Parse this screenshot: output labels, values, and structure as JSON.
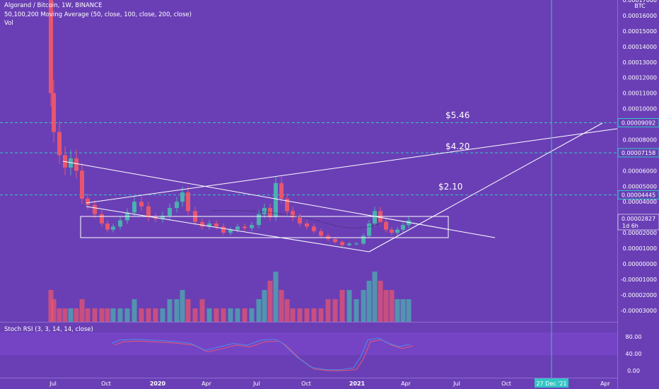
{
  "header": {
    "symbol_line": "Algorand / Bitcoin, 1W, BINANCE",
    "ma_line": "50,100,200 Moving Average (50, close, 100, close, 200, close)",
    "vol_line": "Vol"
  },
  "stoch": {
    "label": "Stoch RSI (3, 3, 14, 14, close)"
  },
  "chart_data": {
    "type": "candlestick",
    "symbol": "Algorand / Bitcoin",
    "interval": "1W",
    "exchange": "BINANCE",
    "currency_label": "BTC",
    "price_axis": {
      "ticks": [
        "0.00017000",
        "0.00016000",
        "0.00015000",
        "0.00014000",
        "0.00013000",
        "0.00012000",
        "0.00011000",
        "0.00010000",
        "0.00009000",
        "0.00008000",
        "0.00006000",
        "0.00005000",
        "0.00004000",
        "0.00003000",
        "0.00002000",
        "0.00001000",
        "0.00000000",
        "-0.00001000",
        "-0.00002000",
        "-0.00003000"
      ],
      "ylim": [
        -3.45e-05,
        0.000171
      ]
    },
    "time_axis": {
      "ticks": [
        "Jul",
        "Oct",
        "2020",
        "Apr",
        "Jul",
        "Oct",
        "2021",
        "Apr",
        "Jul",
        "Oct",
        "27 Dec '21",
        "Apr"
      ],
      "bold": [
        "2020",
        "2021"
      ]
    },
    "horizontal_levels": [
      {
        "price": 9.092e-05,
        "label": "0.00009092",
        "target": "$5.46"
      },
      {
        "price": 7.158e-05,
        "label": "0.00007158",
        "target": "$4.20"
      },
      {
        "price": 4.445e-05,
        "label": "0.00004445",
        "target": "$2.10"
      }
    ],
    "current_price": {
      "label": "0.00002827",
      "countdown": "1d 6h"
    },
    "vertical_marker": {
      "label": "27 Dec '21"
    },
    "stoch_rsi": {
      "name": "Stoch RSI (3, 3, 14, 14, close)",
      "ticks": [
        "80.00",
        "40.00",
        "0.00"
      ],
      "ylim": [
        0,
        100
      ]
    },
    "colors": {
      "up": "#4bb0b0",
      "down": "#e8566e",
      "background": "#6a3fb5",
      "line": "#ffffff",
      "vertical": "#33c5c5"
    }
  }
}
